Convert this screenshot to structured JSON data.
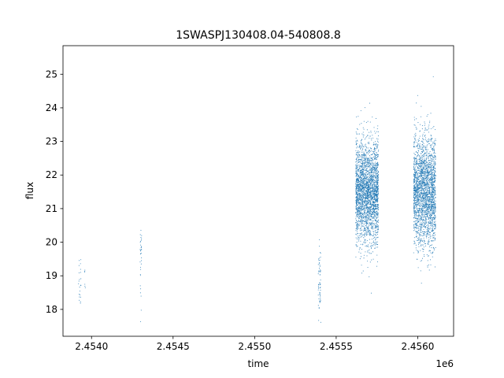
{
  "chart_data": {
    "type": "scatter",
    "title": "1SWASPJ130408.04-540808.8",
    "xlabel": "time",
    "ylabel": "flux",
    "x_offset_label": "1e6",
    "x_scale": 1000000,
    "xlim": [
      2453825,
      2456220
    ],
    "ylim": [
      17.2,
      25.85
    ],
    "xticks": [
      2454000,
      2454500,
      2455000,
      2455500,
      2456000
    ],
    "xtick_labels": [
      "2.4540",
      "2.4545",
      "2.4550",
      "2.4555",
      "2.4560"
    ],
    "yticks": [
      18,
      19,
      20,
      21,
      22,
      23,
      24,
      25
    ],
    "ytick_labels": [
      "18",
      "19",
      "20",
      "21",
      "22",
      "23",
      "24",
      "25"
    ],
    "grid": false,
    "marker_color": "#1f77b4",
    "clusters": [
      {
        "x_range": [
          2453920,
          2453935
        ],
        "y_mean": 18.9,
        "y_sd": 0.45,
        "n": 22
      },
      {
        "x_range": [
          2453955,
          2453962
        ],
        "y_mean": 19.0,
        "y_sd": 0.2,
        "n": 6
      },
      {
        "x_range": [
          2454298,
          2454308
        ],
        "y_mean": 19.9,
        "y_sd": 0.3,
        "n": 24
      },
      {
        "x_range": [
          2454298,
          2454306
        ],
        "y_mean": 18.6,
        "y_sd": 0.4,
        "n": 10
      },
      {
        "x_range": [
          2455390,
          2455406
        ],
        "y_mean": 18.7,
        "y_sd": 0.55,
        "n": 60
      },
      {
        "x_range": [
          2455620,
          2455760
        ],
        "y_mean": 21.5,
        "y_sd": 0.75,
        "n": 2600
      },
      {
        "x_range": [
          2455975,
          2456110
        ],
        "y_mean": 21.5,
        "y_sd": 0.8,
        "n": 2400
      }
    ]
  }
}
